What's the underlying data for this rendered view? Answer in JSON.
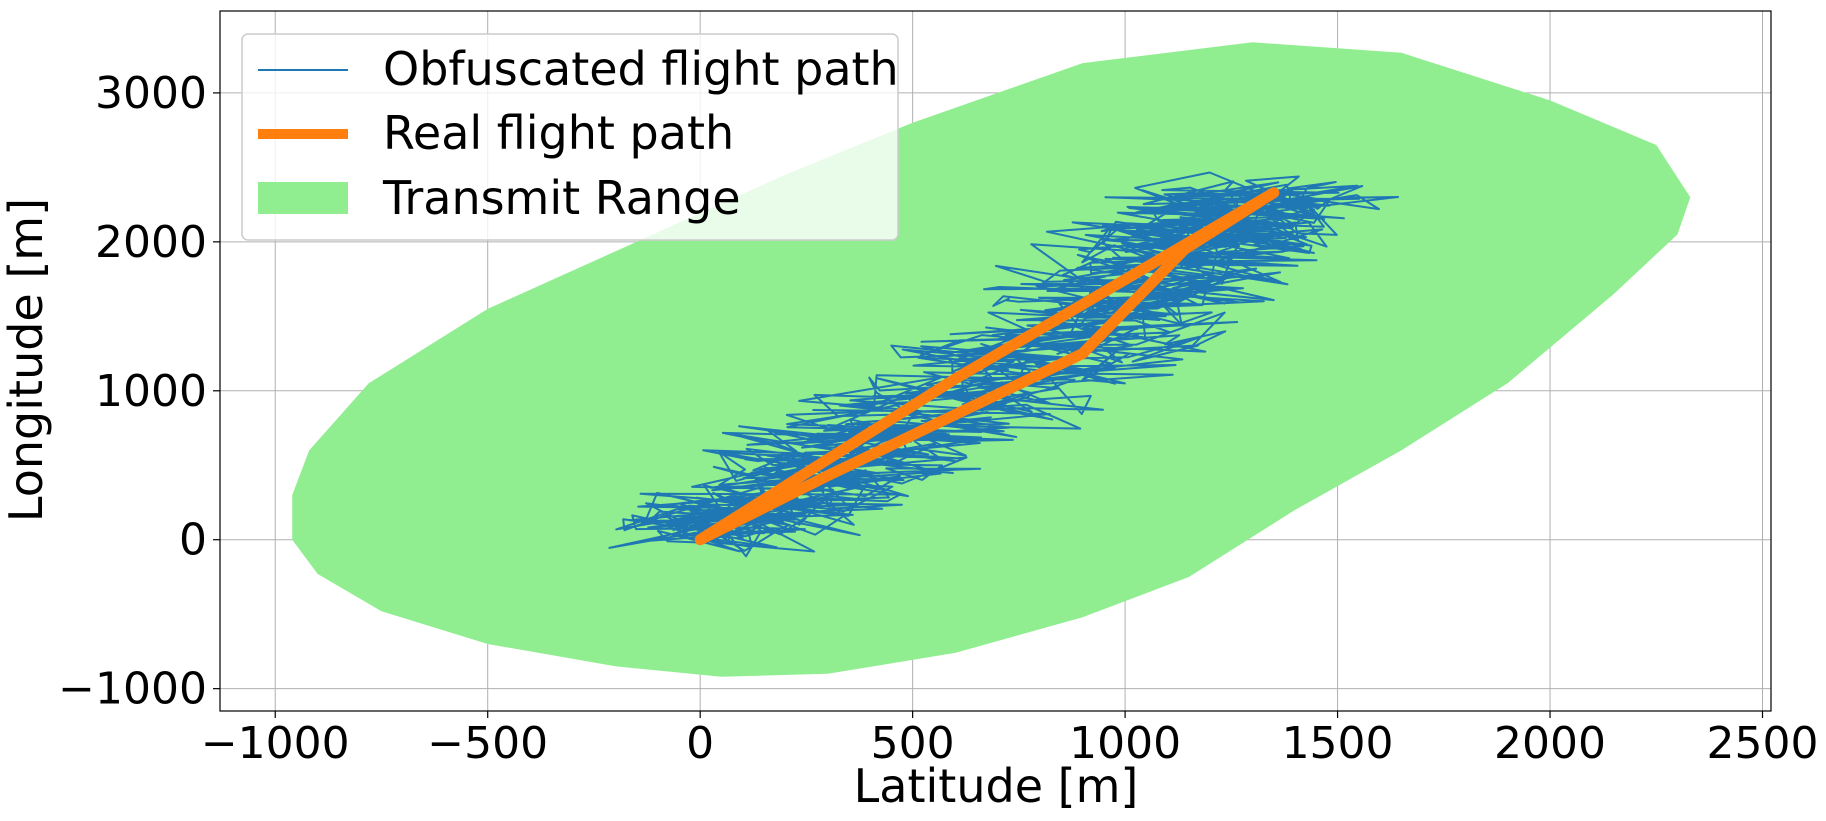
{
  "chart_data": {
    "type": "line",
    "xlabel": "Latitude [m]",
    "ylabel": "Longitude [m]",
    "xlim": [
      -1130,
      2520
    ],
    "ylim": [
      -1150,
      3550
    ],
    "xticks": [
      -1000,
      -500,
      0,
      500,
      1000,
      1500,
      2000,
      2500
    ],
    "yticks": [
      -1000,
      0,
      1000,
      2000,
      3000
    ],
    "xtick_labels": [
      "−1000",
      "−500",
      "0",
      "500",
      "1000",
      "1500",
      "2000",
      "2500"
    ],
    "ytick_labels": [
      "−1000",
      "0",
      "1000",
      "2000",
      "3000"
    ],
    "grid": true,
    "legend_position": "top-left",
    "legend": [
      {
        "label": "Obfuscated flight path",
        "kind": "line",
        "color": "#1f77b4"
      },
      {
        "label": "Real flight path",
        "kind": "line",
        "color": "#ff7f0e"
      },
      {
        "label": "Transmit Range",
        "kind": "patch",
        "color": "#90ee90"
      }
    ],
    "series": [
      {
        "name": "Transmit Range",
        "kind": "filled-area",
        "color": "#90ee90",
        "boundary": [
          [
            -960,
            0
          ],
          [
            -900,
            -230
          ],
          [
            -750,
            -480
          ],
          [
            -500,
            -700
          ],
          [
            -200,
            -850
          ],
          [
            50,
            -920
          ],
          [
            300,
            -900
          ],
          [
            600,
            -760
          ],
          [
            900,
            -520
          ],
          [
            1150,
            -250
          ],
          [
            1400,
            200
          ],
          [
            1650,
            600
          ],
          [
            1900,
            1050
          ],
          [
            2150,
            1650
          ],
          [
            2300,
            2050
          ],
          [
            2330,
            2300
          ],
          [
            2250,
            2650
          ],
          [
            2000,
            2950
          ],
          [
            1650,
            3270
          ],
          [
            1300,
            3340
          ],
          [
            900,
            3200
          ],
          [
            500,
            2800
          ],
          [
            200,
            2450
          ],
          [
            -150,
            2000
          ],
          [
            -500,
            1550
          ],
          [
            -780,
            1050
          ],
          [
            -920,
            600
          ],
          [
            -960,
            300
          ]
        ]
      },
      {
        "name": "Obfuscated flight path",
        "kind": "noisy-line",
        "color": "#1f77b4",
        "base": [
          [
            0,
            0
          ],
          [
            300,
            430
          ],
          [
            900,
            1250
          ],
          [
            1140,
            1950
          ],
          [
            1350,
            2330
          ],
          [
            600,
            1080
          ],
          [
            0,
            0
          ]
        ],
        "spread_x": [
          -330,
          1700
        ],
        "spread_y": [
          -120,
          2510
        ]
      },
      {
        "name": "Real flight path",
        "kind": "line",
        "color": "#ff7f0e",
        "x": [
          0,
          300,
          900,
          1140,
          1350,
          600,
          0
        ],
        "y": [
          0,
          430,
          1250,
          1950,
          2330,
          1080,
          0
        ]
      }
    ]
  }
}
